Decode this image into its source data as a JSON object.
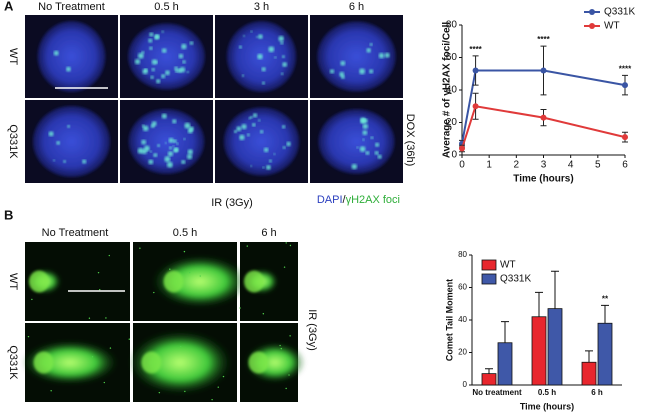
{
  "panel_a": {
    "label": "A",
    "columns": [
      "No Treatment",
      "0.5 h",
      "3 h",
      "6 h"
    ],
    "rows": [
      "WT",
      "Q331K"
    ],
    "side_label": "DOX (36h)",
    "bottom_label": "IR (3Gy)",
    "stain_label": [
      "DAPI",
      "/",
      "γH2AX foci"
    ]
  },
  "panel_b": {
    "label": "B",
    "columns": [
      "No Treatment",
      "0.5 h",
      "6 h"
    ],
    "rows": [
      "WT",
      "Q331K"
    ],
    "side_label": "IR (3Gy)"
  },
  "chart_data": [
    {
      "type": "line",
      "x": [
        0,
        0.5,
        3,
        6
      ],
      "xlim": [
        0,
        6
      ],
      "xticks": [
        0,
        1,
        2,
        3,
        4,
        5,
        6
      ],
      "ylim": [
        0,
        80
      ],
      "yticks": [
        0,
        20,
        40,
        60,
        80
      ],
      "xlabel": "Time (hours)",
      "ylabel": "Average # of γH2AX foci/Cell",
      "legend": "top-right",
      "series": [
        {
          "name": "Q331K",
          "color": "#3a55a4",
          "values": [
            7,
            52,
            52,
            43
          ],
          "errors": [
            2,
            9,
            15,
            6
          ]
        },
        {
          "name": "WT",
          "color": "#e03a3a",
          "values": [
            4,
            30,
            23,
            11
          ],
          "errors": [
            2,
            8,
            5,
            3
          ]
        }
      ],
      "annotations": [
        {
          "text": "****",
          "x": 0.5
        },
        {
          "text": "****",
          "x": 3
        },
        {
          "text": "****",
          "x": 6
        }
      ]
    },
    {
      "type": "bar",
      "categories": [
        "No treatment",
        "0.5 h",
        "6 h"
      ],
      "ylim": [
        0,
        80
      ],
      "yticks": [
        0,
        20,
        40,
        60,
        80
      ],
      "xlabel": "Time (hours)",
      "ylabel": "Comet Tail Moment",
      "legend": "top-left",
      "series": [
        {
          "name": "WT",
          "color": "#e8262d",
          "values": [
            7,
            42,
            14
          ],
          "errors": [
            3,
            15,
            7
          ]
        },
        {
          "name": "Q331K",
          "color": "#3f58a8",
          "values": [
            26,
            47,
            38
          ],
          "errors": [
            13,
            23,
            11
          ]
        }
      ],
      "annotations": [
        {
          "text": "**",
          "category": "6 h",
          "series": "Q331K"
        }
      ]
    }
  ]
}
